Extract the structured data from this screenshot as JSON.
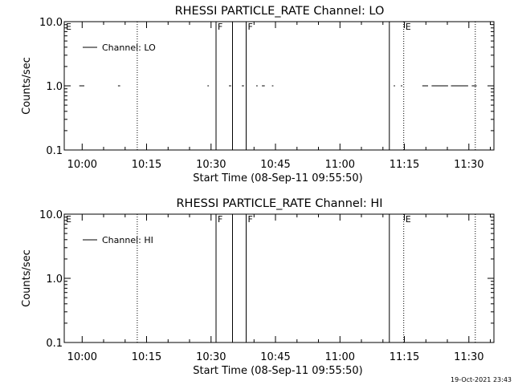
{
  "chart_data": [
    {
      "type": "line",
      "title": "RHESSI PARTICLE_RATE Channel: LO",
      "xlabel": "Start Time (08-Sep-11 09:55:50)",
      "ylabel": "Counts/sec",
      "yscale": "log",
      "ylim": [
        0.1,
        10.0
      ],
      "xlim": [
        "09:55:50",
        "11:35:50"
      ],
      "x_ticks": [
        "10:00",
        "10:15",
        "10:30",
        "10:45",
        "11:00",
        "11:15",
        "11:30"
      ],
      "y_ticks": [
        "0.1",
        "1.0",
        "10.0"
      ],
      "legend": {
        "label": "Channel: LO",
        "position": "top-left"
      },
      "series": [
        {
          "name": "Channel: LO",
          "segments": [
            [
              [
                "09:55:50",
                1.0
              ],
              [
                "09:57:00",
                1.0
              ]
            ],
            [
              [
                "09:59:20",
                1.0
              ],
              [
                "10:00:30",
                1.0
              ]
            ],
            [
              [
                "10:08:20",
                1.0
              ],
              [
                "10:08:50",
                1.0
              ]
            ],
            [
              [
                "10:29:10",
                1.0
              ],
              [
                "10:29:30",
                1.0
              ]
            ],
            [
              [
                "10:34:10",
                1.0
              ],
              [
                "10:34:40",
                1.0
              ]
            ],
            [
              [
                "10:37:10",
                1.0
              ],
              [
                "10:37:40",
                1.0
              ]
            ],
            [
              [
                "10:40:30",
                1.0
              ],
              [
                "10:40:50",
                1.0
              ]
            ],
            [
              [
                "10:41:50",
                1.0
              ],
              [
                "10:42:30",
                1.0
              ]
            ],
            [
              [
                "10:44:10",
                1.0
              ],
              [
                "10:44:30",
                1.0
              ]
            ],
            [
              [
                "11:12:30",
                1.0
              ],
              [
                "11:12:50",
                1.0
              ]
            ],
            [
              [
                "11:14:10",
                1.0
              ],
              [
                "11:14:30",
                1.0
              ]
            ],
            [
              [
                "11:19:10",
                1.0
              ],
              [
                "11:20:30",
                1.0
              ]
            ],
            [
              [
                "11:21:20",
                1.0
              ],
              [
                "11:25:10",
                1.0
              ]
            ],
            [
              [
                "11:25:50",
                1.0
              ],
              [
                "11:29:50",
                1.0
              ]
            ],
            [
              [
                "11:30:40",
                1.0
              ],
              [
                "11:31:50",
                1.0
              ]
            ]
          ]
        }
      ],
      "solid_markers": [
        "10:31:10",
        "10:35:00",
        "10:38:10",
        "11:11:30"
      ],
      "dotted_markers": [
        "10:12:50",
        "11:14:50",
        "11:31:30"
      ],
      "flags": [
        {
          "label": "E",
          "x": "09:55:50"
        },
        {
          "label": "F",
          "x": "10:31:10"
        },
        {
          "label": "F",
          "x": "10:38:10"
        },
        {
          "label": "E",
          "x": "11:14:50"
        }
      ]
    },
    {
      "type": "line",
      "title": "RHESSI PARTICLE_RATE Channel: HI",
      "xlabel": "Start Time (08-Sep-11 09:55:50)",
      "ylabel": "Counts/sec",
      "yscale": "log",
      "ylim": [
        0.1,
        10.0
      ],
      "xlim": [
        "09:55:50",
        "11:35:50"
      ],
      "x_ticks": [
        "10:00",
        "10:15",
        "10:30",
        "10:45",
        "11:00",
        "11:15",
        "11:30"
      ],
      "y_ticks": [
        "0.1",
        "1.0",
        "10.0"
      ],
      "legend": {
        "label": "Channel: HI",
        "position": "top-left"
      },
      "series": [
        {
          "name": "Channel: HI",
          "segments": []
        }
      ],
      "solid_markers": [
        "10:31:10",
        "10:35:00",
        "10:38:10",
        "11:11:30"
      ],
      "dotted_markers": [
        "10:12:50",
        "11:14:50",
        "11:31:30"
      ],
      "flags": [
        {
          "label": "E",
          "x": "09:55:50"
        },
        {
          "label": "F",
          "x": "10:31:10"
        },
        {
          "label": "F",
          "x": "10:38:10"
        },
        {
          "label": "E",
          "x": "11:14:50"
        }
      ]
    }
  ],
  "footer": {
    "timestamp": "19-Oct-2021 23:43"
  }
}
